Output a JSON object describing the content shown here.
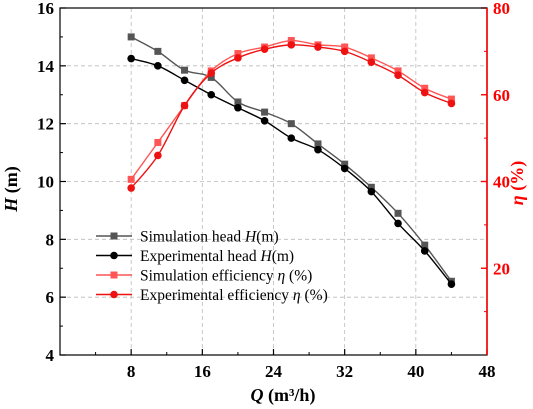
{
  "chart_data": {
    "type": "line",
    "xlabel": "Q (m³/h)",
    "xlabel_var": "Q",
    "xlabel_unit": " (m³/h)",
    "x_ticks": [
      "8",
      "16",
      "24",
      "32",
      "40",
      "48"
    ],
    "xlim": [
      0,
      48
    ],
    "grid": true,
    "legend_position": "bottom-left",
    "y_left": {
      "label": "H (m)",
      "label_var": "H",
      "label_unit": " (m)",
      "ylim": [
        4,
        16
      ],
      "ticks": [
        "4",
        "6",
        "8",
        "10",
        "12",
        "14",
        "16"
      ],
      "color": "#000000"
    },
    "y_right": {
      "label": "η (%)",
      "label_var": "η",
      "label_unit": " (%)",
      "ylim": [
        0,
        80
      ],
      "ticks": [
        "20",
        "40",
        "60",
        "80"
      ],
      "color": "#ff0000"
    },
    "series": [
      {
        "name": "Simulation head H(m)",
        "axis": "left",
        "marker": "square",
        "color": "#555555",
        "x": [
          8,
          11,
          14,
          17,
          20,
          23,
          26,
          29,
          32,
          35,
          38,
          41,
          44
        ],
        "y": [
          15.0,
          14.5,
          13.85,
          13.6,
          12.75,
          12.4,
          12.0,
          11.3,
          10.6,
          9.8,
          8.9,
          7.8,
          6.55
        ]
      },
      {
        "name": "Experimental head H(m)",
        "axis": "left",
        "marker": "circle",
        "color": "#000000",
        "x": [
          8,
          11,
          14,
          17,
          20,
          23,
          26,
          29,
          32,
          35,
          38,
          41,
          44
        ],
        "y": [
          14.25,
          14.0,
          13.5,
          13.0,
          12.55,
          12.1,
          11.5,
          11.1,
          10.45,
          9.65,
          8.55,
          7.6,
          6.45
        ]
      },
      {
        "name": "Simulation efficiency η (%)",
        "axis": "right",
        "marker": "square",
        "color": "#ff5555",
        "x": [
          8,
          11,
          14,
          17,
          20,
          23,
          26,
          29,
          32,
          35,
          38,
          41,
          44
        ],
        "y": [
          40.5,
          49.0,
          57.5,
          65.5,
          69.5,
          71.0,
          72.5,
          71.5,
          71.0,
          68.5,
          65.5,
          61.5,
          59.0
        ]
      },
      {
        "name": "Experimental efficiency η (%)",
        "axis": "right",
        "marker": "circle",
        "color": "#ee1111",
        "x": [
          8,
          11,
          14,
          17,
          20,
          23,
          26,
          29,
          32,
          35,
          38,
          41,
          44
        ],
        "y": [
          38.5,
          46.0,
          57.5,
          65.0,
          68.5,
          70.5,
          71.5,
          71.0,
          70.0,
          67.5,
          64.5,
          60.5,
          58.0
        ]
      }
    ],
    "legend": [
      {
        "text": "Simulation head ",
        "var": "H",
        "unit": "(m)"
      },
      {
        "text": "Experimental head ",
        "var": "H",
        "unit": "(m)"
      },
      {
        "text": "Simulation efficiency ",
        "var": "η",
        "unit": " (%)"
      },
      {
        "text": "Experimental efficiency ",
        "var": "η",
        "unit": " (%)"
      }
    ]
  }
}
